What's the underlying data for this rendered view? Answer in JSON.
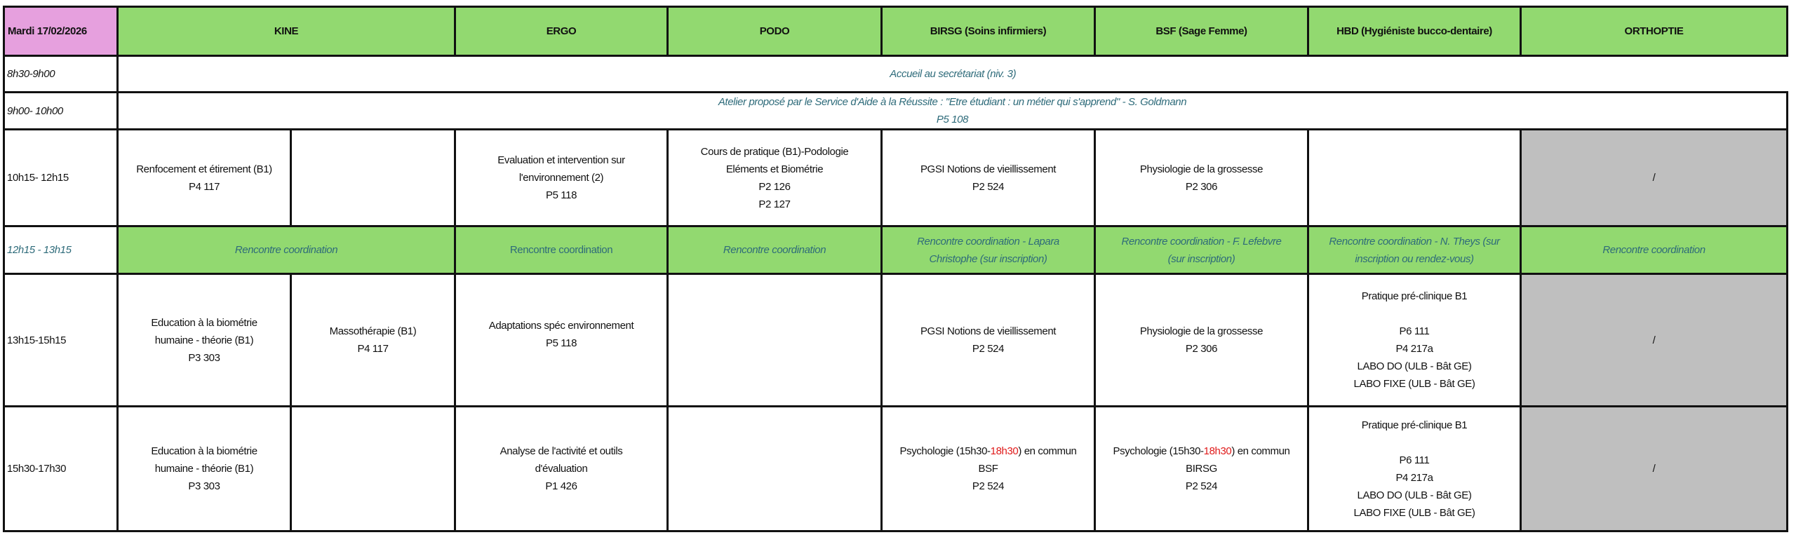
{
  "header": {
    "date": "Mardi 17/02/2026",
    "columns": [
      "KINE",
      "ERGO",
      "PODO",
      "BIRSG (Soins infirmiers)",
      "BSF (Sage Femme)",
      "HBD (Hygiéniste bucco-dentaire)",
      "ORTHOPTIE"
    ]
  },
  "colors": {
    "header_green": "#92D970",
    "date_pink": "#E6A0DE",
    "unavailable_gray": "#BFBFBF",
    "teal_text": "#2E6B7A",
    "highlight_red": "#E01B1B"
  },
  "rows": [
    {
      "time": "8h30-9h00",
      "all": "Accueil au secrétariat (niv. 3)"
    },
    {
      "time": "9h00- 10h00",
      "all": [
        "Atelier proposé par le Service d'Aide à la Réussite : \"Etre étudiant : un métier qui s'apprend\" - S. Goldmann",
        "P5 108"
      ]
    },
    {
      "time": "10h15- 12h15",
      "kine_a": [
        "Renfocement et étirement (B1)",
        "P4 117"
      ],
      "ergo": [
        "Evaluation et intervention sur",
        "l'environnement (2)",
        "P5 118"
      ],
      "podo": [
        "Cours de pratique (B1)-Podologie",
        "Eléments et Biométrie",
        "P2 126",
        "P2 127"
      ],
      "birsg": [
        "PGSI Notions de vieillissement",
        "P2 524"
      ],
      "bsf": [
        "Physiologie de la grossesse",
        "P2 306"
      ],
      "ortho": "/"
    },
    {
      "time": "12h15 - 13h15",
      "kine": "Rencontre coordination",
      "ergo": "Rencontre coordination",
      "podo": "Rencontre coordination",
      "birsg": [
        "Rencontre coordination - Lapara",
        "Christophe (sur inscription)"
      ],
      "bsf": [
        "Rencontre coordination - F. Lefebvre",
        "(sur inscription)"
      ],
      "hbd": [
        "Rencontre coordination - N. Theys (sur",
        "inscription ou rendez-vous)"
      ],
      "ortho": "Rencontre coordination"
    },
    {
      "time": "13h15-15h15",
      "kine_a": [
        "Education à la biométrie",
        "humaine - théorie (B1)",
        "P3 303"
      ],
      "kine_b": [
        "Massothérapie (B1)",
        "P4 117"
      ],
      "ergo": [
        "Adaptations spéc environnement",
        "P5 118"
      ],
      "birsg": [
        "PGSI Notions de vieillissement",
        "P2 524"
      ],
      "bsf": [
        "Physiologie de la grossesse",
        "P2 306"
      ],
      "hbd": [
        "Pratique pré-clinique B1",
        "P6 111",
        "P4 217a",
        "LABO DO (ULB - Bât GE)",
        "LABO FIXE (ULB - Bât GE)"
      ],
      "ortho": "/"
    },
    {
      "time": "15h30-17h30",
      "kine_a": [
        "Education à la biométrie",
        "humaine - théorie (B1)",
        "P3 303"
      ],
      "ergo": [
        "Analyse de l'activité et outils",
        "d'évaluation",
        "P1 426"
      ],
      "birsg": {
        "pre": "Psychologie (15h30-",
        "red": "18h30",
        "post": ") en commun",
        "lines": [
          "BSF",
          "P2 524"
        ]
      },
      "bsf": {
        "pre": "Psychologie (15h30-",
        "red": "18h30",
        "post": ") en commun",
        "lines": [
          "BIRSG",
          "P2 524"
        ]
      },
      "hbd": [
        "Pratique pré-clinique B1",
        "P6 111",
        "P4 217a",
        "LABO DO (ULB - Bât GE)",
        "LABO FIXE (ULB - Bât GE)"
      ],
      "ortho": "/"
    }
  ]
}
